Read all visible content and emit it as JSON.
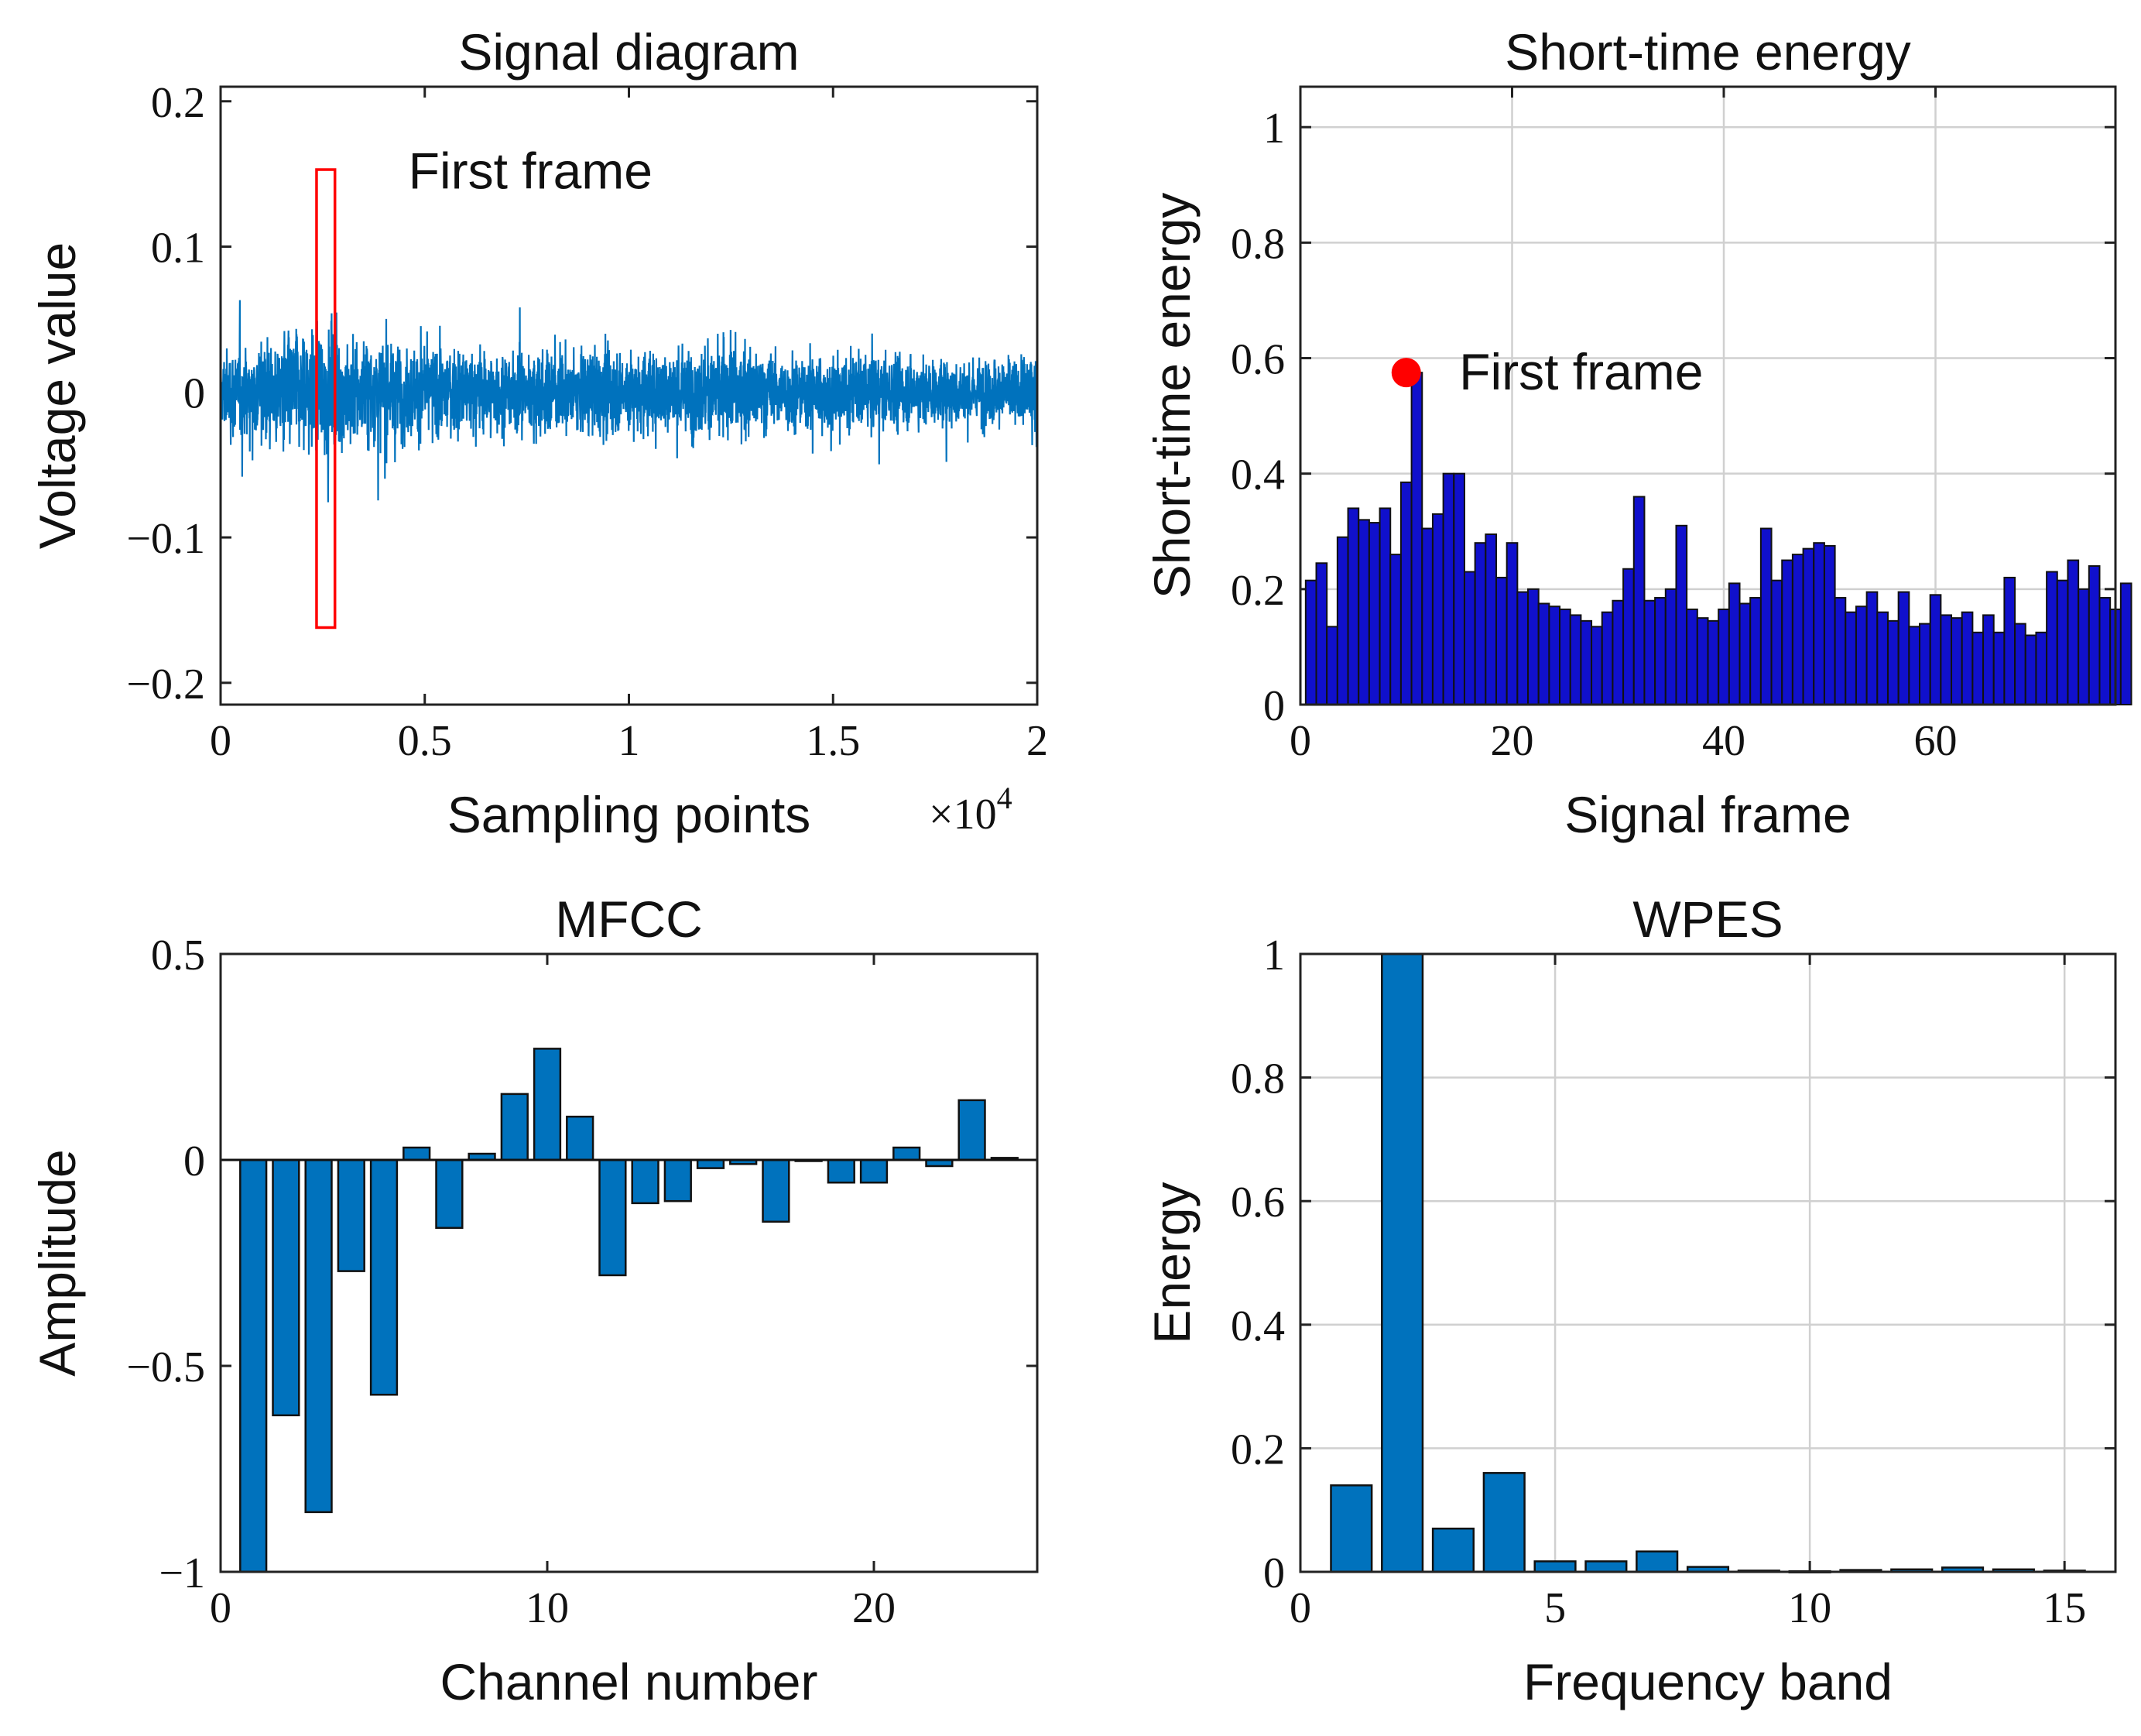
{
  "colors": {
    "signal": "#0072BD",
    "mfcc_bar": "#0072BD",
    "wpes_bar": "#0072BD",
    "energy_bar": "#1010CC",
    "marker": "#FF0000",
    "frame_box": "#FF0000"
  },
  "chart_data": [
    {
      "id": "signal",
      "type": "line",
      "title": "Signal diagram",
      "xlabel": "Sampling points",
      "ylabel": "Voltage value",
      "x_multiplier": "×10",
      "x_multiplier_exp": "4",
      "xlim": [
        0,
        2
      ],
      "ylim": [
        -0.215,
        0.21
      ],
      "xticks": [
        0,
        0.5,
        1,
        1.5,
        2
      ],
      "xticklabels": [
        "0",
        "0.5",
        "1",
        "1.5",
        "2"
      ],
      "yticks": [
        -0.2,
        -0.1,
        0,
        0.1,
        0.2
      ],
      "yticklabels": [
        "−0.2",
        "−0.1",
        "0",
        "0.1",
        "0.2"
      ],
      "grid": false,
      "envelope": {
        "description_units": "x in 10^4 samples",
        "x": [
          0,
          0.1,
          0.2,
          0.3,
          0.5,
          0.8,
          1.0,
          1.2,
          1.5,
          1.8,
          2.0
        ],
        "amplitude": [
          0.055,
          0.07,
          0.085,
          0.08,
          0.06,
          0.055,
          0.058,
          0.06,
          0.05,
          0.045,
          0.05
        ]
      },
      "frame_box": {
        "x0": 0.235,
        "x1": 0.28,
        "y0": -0.162,
        "y1": 0.153
      },
      "annotation": {
        "text": "First frame",
        "x": 0.46,
        "y": 0.14
      }
    },
    {
      "id": "energy",
      "type": "bar",
      "title": "Short-time energy",
      "xlabel": "Signal frame",
      "ylabel": "Short-time energy",
      "xlim": [
        0,
        77
      ],
      "ylim": [
        0,
        1.07
      ],
      "xticks": [
        0,
        20,
        40,
        60
      ],
      "xticklabels": [
        "0",
        "20",
        "40",
        "60"
      ],
      "yticks": [
        0,
        0.2,
        0.4,
        0.6,
        0.8,
        1
      ],
      "yticklabels": [
        "0",
        "0.2",
        "0.4",
        "0.6",
        "0.8",
        "1"
      ],
      "grid": true,
      "values": [
        0.215,
        0.245,
        0.135,
        0.29,
        0.34,
        0.32,
        0.315,
        0.34,
        0.26,
        0.385,
        0.575,
        0.305,
        0.33,
        0.4,
        0.4,
        0.23,
        0.28,
        0.295,
        0.22,
        0.28,
        0.195,
        0.2,
        0.175,
        0.17,
        0.165,
        0.155,
        0.145,
        0.135,
        0.16,
        0.18,
        0.235,
        0.36,
        0.18,
        0.185,
        0.2,
        0.31,
        0.165,
        0.15,
        0.145,
        0.165,
        0.21,
        0.175,
        0.185,
        0.305,
        0.215,
        0.25,
        0.26,
        0.27,
        0.28,
        0.275,
        0.185,
        0.16,
        0.17,
        0.195,
        0.16,
        0.145,
        0.195,
        0.135,
        0.14,
        0.19,
        0.155,
        0.15,
        0.16,
        0.125,
        0.155,
        0.125,
        0.22,
        0.14,
        0.12,
        0.125,
        0.23,
        0.215,
        0.25,
        0.2,
        0.24,
        0.185,
        0.165,
        0.21
      ],
      "marker": {
        "x": 10,
        "y": 0.575
      },
      "annotation": {
        "text": "First frame",
        "x": 15,
        "y": 0.575
      }
    },
    {
      "id": "mfcc",
      "type": "bar",
      "title": "MFCC",
      "xlabel": "Channel number",
      "ylabel": "Amplitude",
      "xlim": [
        0,
        25
      ],
      "ylim": [
        -1,
        0.5
      ],
      "xticks": [
        0,
        10,
        20
      ],
      "xticklabels": [
        "0",
        "10",
        "20"
      ],
      "yticks": [
        -1,
        -0.5,
        0,
        0.5
      ],
      "yticklabels": [
        "−1",
        "−0.5",
        "0",
        "0.5"
      ],
      "grid": false,
      "categories": [
        1,
        2,
        3,
        4,
        5,
        6,
        7,
        8,
        9,
        10,
        11,
        12,
        13,
        14,
        15,
        16,
        17,
        18,
        19,
        20,
        21,
        22,
        23,
        24
      ],
      "values": [
        -1.0,
        -0.62,
        -0.855,
        -0.27,
        -0.57,
        0.03,
        -0.165,
        0.015,
        0.16,
        0.27,
        0.105,
        -0.28,
        -0.105,
        -0.1,
        -0.02,
        -0.01,
        -0.15,
        0.0,
        -0.055,
        -0.055,
        0.03,
        -0.015,
        0.145,
        0.005
      ]
    },
    {
      "id": "wpes",
      "type": "bar",
      "title": "WPES",
      "xlabel": "Frequency band",
      "ylabel": "Energy",
      "xlim": [
        0,
        16
      ],
      "ylim": [
        0,
        1
      ],
      "xticks": [
        0,
        5,
        10,
        15
      ],
      "xticklabels": [
        "0",
        "5",
        "10",
        "15"
      ],
      "yticks": [
        0,
        0.2,
        0.4,
        0.6,
        0.8,
        1
      ],
      "yticklabels": [
        "0",
        "0.2",
        "0.4",
        "0.6",
        "0.8",
        "1"
      ],
      "grid": true,
      "categories": [
        1,
        2,
        3,
        4,
        5,
        6,
        7,
        8,
        9,
        10,
        11,
        12,
        13,
        14,
        15
      ],
      "values": [
        0.14,
        1.0,
        0.07,
        0.16,
        0.017,
        0.017,
        0.033,
        0.008,
        0.002,
        0.001,
        0.003,
        0.004,
        0.007,
        0.004,
        0.002
      ]
    }
  ]
}
